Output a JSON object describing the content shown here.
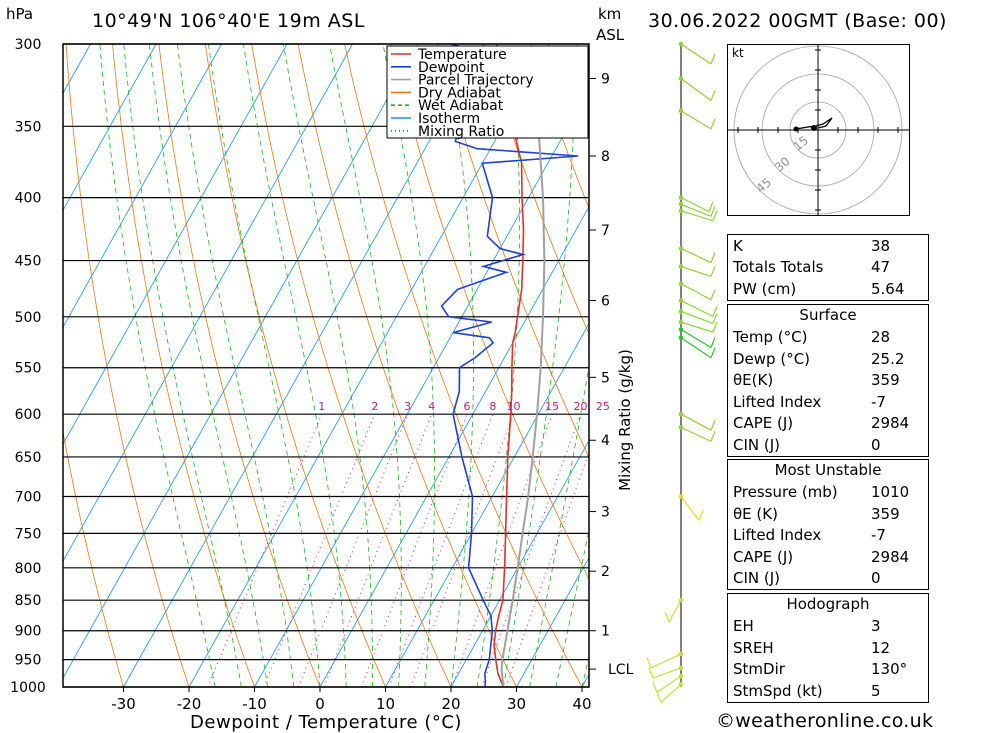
{
  "header": {
    "hpa_label": "hPa",
    "location": "10°49'N 106°40'E 19m ASL",
    "km_label": "km",
    "asl_label": "ASL",
    "datetime": "30.06.2022 00GMT (Base: 00)"
  },
  "chart_data": {
    "type": "line",
    "subtype": "skew-t log-p",
    "xlabel": "Dewpoint / Temperature (°C)",
    "ylabel": "Mixing Ratio (g/kg)",
    "x_ticks": [
      -30,
      -20,
      -10,
      0,
      10,
      20,
      30,
      40
    ],
    "pressure_levels": [
      300,
      350,
      400,
      450,
      500,
      550,
      600,
      650,
      700,
      750,
      800,
      850,
      900,
      950,
      1000
    ],
    "km_ticks": [
      {
        "label": "9",
        "p": 320
      },
      {
        "label": "8",
        "p": 370
      },
      {
        "label": "7",
        "p": 425
      },
      {
        "label": "6",
        "p": 485
      },
      {
        "label": "5",
        "p": 560
      },
      {
        "label": "4",
        "p": 630
      },
      {
        "label": "3",
        "p": 720
      },
      {
        "label": "2",
        "p": 805
      },
      {
        "label": "1",
        "p": 900
      },
      {
        "label": "LCL",
        "p": 967
      }
    ],
    "mixing_ratio_labels": [
      "1",
      "2",
      "3",
      "4",
      "6",
      "8",
      "10",
      "15",
      "20",
      "25"
    ],
    "legend": [
      {
        "name": "Temperature",
        "color": "#e03030",
        "style": "solid"
      },
      {
        "name": "Dewpoint",
        "color": "#2040d0",
        "style": "solid"
      },
      {
        "name": "Parcel Trajectory",
        "color": "#a0a0a0",
        "style": "solid"
      },
      {
        "name": "Dry Adiabat",
        "color": "#e07a20",
        "style": "solid"
      },
      {
        "name": "Wet Adiabat",
        "color": "#20b020",
        "style": "dashed"
      },
      {
        "name": "Isotherm",
        "color": "#2090e0",
        "style": "solid"
      },
      {
        "name": "Mixing Ratio",
        "color": "#c02080",
        "style": "dotted"
      }
    ],
    "series": [
      {
        "name": "Temperature",
        "points": [
          [
            1000,
            28
          ],
          [
            975,
            26
          ],
          [
            950,
            24.5
          ],
          [
            925,
            23
          ],
          [
            900,
            22
          ],
          [
            875,
            21.2
          ],
          [
            850,
            20.5
          ],
          [
            800,
            18
          ],
          [
            750,
            15.2
          ],
          [
            700,
            12.2
          ],
          [
            650,
            9
          ],
          [
            600,
            5.8
          ],
          [
            575,
            4
          ],
          [
            550,
            2
          ],
          [
            525,
            0
          ],
          [
            515,
            -0.5
          ],
          [
            500,
            -1.5
          ],
          [
            475,
            -3.2
          ],
          [
            450,
            -5.5
          ],
          [
            425,
            -8
          ],
          [
            400,
            -11
          ],
          [
            375,
            -14
          ],
          [
            350,
            -18.5
          ],
          [
            325,
            -23.5
          ],
          [
            300,
            -28
          ]
        ]
      },
      {
        "name": "Dewpoint",
        "points": [
          [
            1000,
            25.2
          ],
          [
            990,
            24.8
          ],
          [
            975,
            24
          ],
          [
            950,
            23.5
          ],
          [
            900,
            21.5
          ],
          [
            875,
            20
          ],
          [
            850,
            17.5
          ],
          [
            800,
            12.5
          ],
          [
            750,
            10
          ],
          [
            700,
            7
          ],
          [
            650,
            2
          ],
          [
            600,
            -3
          ],
          [
            575,
            -4
          ],
          [
            550,
            -6
          ],
          [
            540,
            -4.5
          ],
          [
            525,
            -3
          ],
          [
            520,
            -4
          ],
          [
            515,
            -10
          ],
          [
            505,
            -5
          ],
          [
            500,
            -12
          ],
          [
            490,
            -14
          ],
          [
            475,
            -13
          ],
          [
            460,
            -7
          ],
          [
            455,
            -11
          ],
          [
            445,
            -6
          ],
          [
            440,
            -10
          ],
          [
            430,
            -13
          ],
          [
            400,
            -15.5
          ],
          [
            375,
            -20
          ],
          [
            370,
            -6
          ],
          [
            365,
            -22
          ],
          [
            360,
            -26
          ],
          [
            345,
            -27
          ],
          [
            340,
            -30
          ],
          [
            330,
            -35
          ],
          [
            315,
            -17
          ],
          [
            300,
            -35
          ],
          [
            290,
            -40
          ]
        ]
      },
      {
        "name": "Parcel Trajectory",
        "points": [
          [
            1000,
            28
          ],
          [
            967,
            26.2
          ],
          [
            950,
            25.5
          ],
          [
            900,
            23.8
          ],
          [
            850,
            22
          ],
          [
            800,
            20
          ],
          [
            750,
            17.8
          ],
          [
            700,
            15.5
          ],
          [
            650,
            12.8
          ],
          [
            600,
            9.8
          ],
          [
            550,
            6.4
          ],
          [
            500,
            2.4
          ],
          [
            450,
            -2.2
          ],
          [
            400,
            -7.8
          ],
          [
            350,
            -14.6
          ]
        ]
      }
    ]
  },
  "hodograph": {
    "unit_label": "kt",
    "ring_labels": [
      "15",
      "30",
      "45"
    ]
  },
  "indices": {
    "top": [
      {
        "key": "K",
        "value": "38"
      },
      {
        "key": "Totals Totals",
        "value": "47"
      },
      {
        "key": "PW (cm)",
        "value": "5.64"
      }
    ],
    "surface": {
      "title": "Surface",
      "rows": [
        {
          "key": "Temp (°C)",
          "value": "28"
        },
        {
          "key": "Dewp (°C)",
          "value": "25.2"
        },
        {
          "key": "θE(K)",
          "value": "359"
        },
        {
          "key": "Lifted Index",
          "value": "-7"
        },
        {
          "key": "CAPE (J)",
          "value": "2984"
        },
        {
          "key": "CIN (J)",
          "value": "0"
        }
      ]
    },
    "most_unstable": {
      "title": "Most Unstable",
      "rows": [
        {
          "key": "Pressure (mb)",
          "value": "1010"
        },
        {
          "key": "θE (K)",
          "value": "359"
        },
        {
          "key": "Lifted Index",
          "value": "-7"
        },
        {
          "key": "CAPE (J)",
          "value": "2984"
        },
        {
          "key": "CIN (J)",
          "value": "0"
        }
      ]
    },
    "hodograph_box": {
      "title": "Hodograph",
      "rows": [
        {
          "key": "EH",
          "value": "3"
        },
        {
          "key": "SREH",
          "value": "12"
        },
        {
          "key": "StmDir",
          "value": "130°"
        },
        {
          "key": "StmSpd (kt)",
          "value": "5"
        }
      ]
    }
  },
  "footer": {
    "copyright": "©weatheronline.co.uk"
  }
}
